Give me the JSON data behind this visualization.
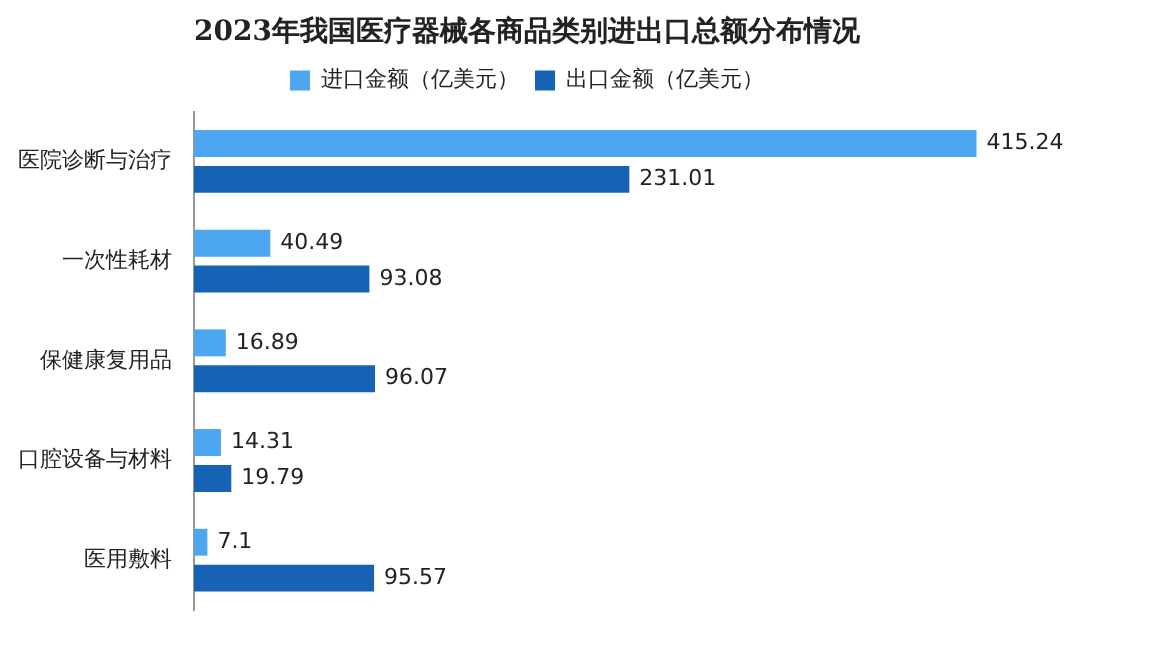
{
  "chart_data": {
    "type": "bar",
    "orientation": "horizontal",
    "title": "2023年我国医疗器械各商品类别进出口总额分布情况",
    "categories": [
      "医院诊断与治疗",
      "一次性耗材",
      "保健康复用品",
      "口腔设备与材料",
      "医用敷料"
    ],
    "series": [
      {
        "name": "进口金额（亿美元）",
        "color": "#4da6f0",
        "values": [
          415.24,
          40.49,
          16.89,
          14.31,
          7.1
        ]
      },
      {
        "name": "出口金额（亿美元）",
        "color": "#1663b5",
        "values": [
          231.01,
          93.08,
          96.07,
          19.79,
          95.57
        ]
      }
    ],
    "data_labels": true,
    "legend": "top"
  }
}
